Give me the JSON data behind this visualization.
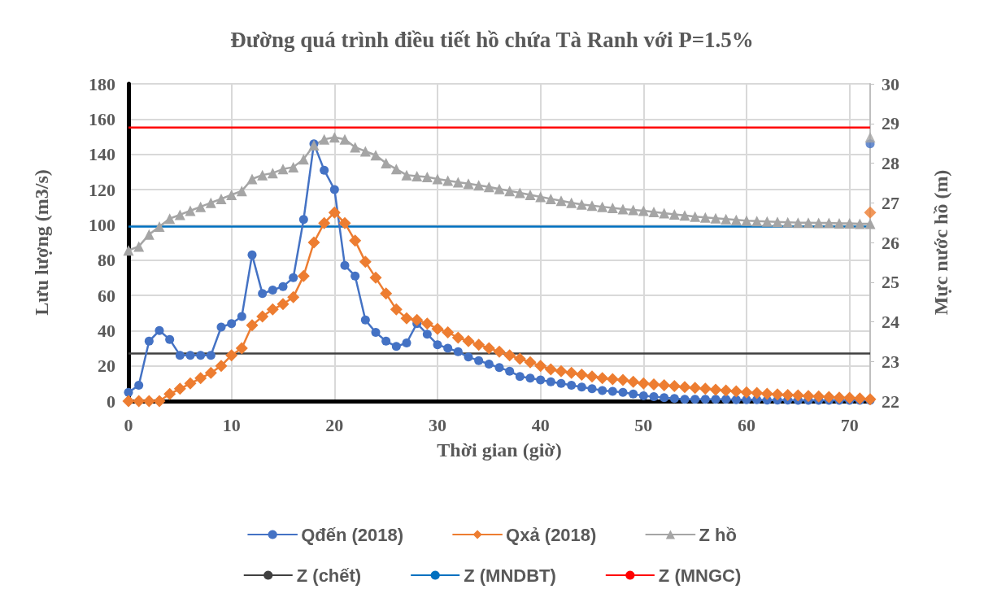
{
  "chart_data": {
    "type": "line",
    "title": "Đường quá trình điều tiết hồ chứa Tà Ranh với P=1.5%",
    "xlabel": "Thời gian (giờ)",
    "ylabel": "Lưu lượng (m3/s)",
    "y2label": "Mực nước hồ (m)",
    "x": [
      0,
      1,
      2,
      3,
      4,
      5,
      6,
      7,
      8,
      9,
      10,
      11,
      12,
      13,
      14,
      15,
      16,
      17,
      18,
      19,
      20,
      21,
      22,
      23,
      24,
      25,
      26,
      27,
      28,
      29,
      30,
      31,
      32,
      33,
      34,
      35,
      36,
      37,
      38,
      39,
      40,
      41,
      42,
      43,
      44,
      45,
      46,
      47,
      48,
      49,
      50,
      51,
      52,
      53,
      54,
      55,
      56,
      57,
      58,
      59,
      60,
      61,
      62,
      63,
      64,
      65,
      66,
      67,
      68,
      69,
      70,
      71,
      72
    ],
    "series": [
      {
        "name": "Qđến (2018)",
        "color": "#4472c4",
        "marker": "circle",
        "values": [
          5,
          9,
          34,
          40,
          35,
          26,
          26,
          26,
          26,
          42,
          44,
          48,
          83,
          61,
          63,
          65,
          70,
          103,
          146,
          131,
          120,
          77,
          71,
          46,
          39,
          34,
          31,
          33,
          44,
          38,
          32,
          30,
          28,
          25,
          23,
          21,
          19,
          17,
          14,
          13,
          12,
          11,
          10,
          9,
          8,
          7,
          6,
          5.5,
          5,
          4,
          3,
          2.5,
          2,
          1.5,
          1,
          1,
          1,
          1,
          1,
          0.8,
          0.8,
          0.8,
          0.6,
          0.6,
          0.6,
          0.5,
          0.5,
          0.5,
          0.5,
          0.5,
          0.5,
          0.5,
          0.5
        ]
      },
      {
        "name": "Qxả (2018)",
        "color": "#ed7d31",
        "marker": "diamond",
        "values": [
          0,
          0,
          0,
          0,
          4,
          7,
          10,
          13,
          16,
          20,
          26,
          30,
          43,
          48,
          52,
          55,
          59,
          71,
          90,
          101,
          107,
          101,
          91,
          79,
          70,
          61,
          52,
          47,
          46,
          44,
          41,
          39,
          36,
          34,
          32,
          30,
          28,
          26,
          24,
          22,
          20,
          18,
          17,
          16,
          15,
          14,
          13,
          12.5,
          12,
          11,
          10,
          9.5,
          9,
          8.5,
          8,
          7.5,
          7,
          6.5,
          6,
          5.5,
          5,
          4.6,
          4.2,
          3.8,
          3.5,
          3.2,
          2.9,
          2.6,
          2.3,
          2,
          1.8,
          1.5,
          1
        ]
      },
      {
        "name": "Z hồ",
        "color": "#a5a5a5",
        "marker": "triangle",
        "axis": "y2",
        "values": [
          25.8,
          25.9,
          26.2,
          26.4,
          26.6,
          26.7,
          26.8,
          26.9,
          27.0,
          27.1,
          27.2,
          27.3,
          27.6,
          27.7,
          27.75,
          27.85,
          27.9,
          28.1,
          28.45,
          28.6,
          28.65,
          28.6,
          28.4,
          28.3,
          28.2,
          28.0,
          27.85,
          27.7,
          27.67,
          27.65,
          27.6,
          27.56,
          27.52,
          27.48,
          27.44,
          27.4,
          27.35,
          27.3,
          27.25,
          27.2,
          27.15,
          27.1,
          27.05,
          27.0,
          26.96,
          26.93,
          26.9,
          26.87,
          26.84,
          26.82,
          26.8,
          26.77,
          26.74,
          26.71,
          26.68,
          26.65,
          26.63,
          26.61,
          26.59,
          26.57,
          26.55,
          26.54,
          26.53,
          26.52,
          26.51,
          26.5,
          26.5,
          26.49,
          26.49,
          26.48,
          26.48,
          26.47,
          26.47
        ]
      },
      {
        "type": "scatter",
        "color": "#4472c4",
        "marker": "circle",
        "values": [
          null,
          null,
          null,
          null,
          null,
          null,
          null,
          null,
          null,
          null,
          null,
          null,
          null,
          null,
          null,
          null,
          null,
          null,
          null,
          null,
          null,
          null,
          null,
          null,
          null,
          null,
          null,
          null,
          null,
          null,
          null,
          null,
          null,
          null,
          null,
          null,
          null,
          null,
          null,
          null,
          null,
          null,
          null,
          null,
          null,
          null,
          null,
          null,
          null,
          null,
          null,
          null,
          null,
          null,
          null,
          null,
          null,
          null,
          null,
          null,
          null,
          null,
          null,
          null,
          null,
          null,
          null,
          null,
          null,
          null,
          null,
          null,
          146
        ]
      },
      {
        "type": "scatter",
        "color": "#ed7d31",
        "marker": "diamond",
        "values": [
          null,
          null,
          null,
          null,
          null,
          null,
          null,
          null,
          null,
          null,
          null,
          null,
          null,
          null,
          null,
          null,
          null,
          null,
          null,
          null,
          null,
          null,
          null,
          null,
          null,
          null,
          null,
          null,
          null,
          null,
          null,
          null,
          null,
          null,
          null,
          null,
          null,
          null,
          null,
          null,
          null,
          null,
          null,
          null,
          null,
          null,
          null,
          null,
          null,
          null,
          null,
          null,
          null,
          null,
          null,
          null,
          null,
          null,
          null,
          null,
          null,
          null,
          null,
          null,
          null,
          null,
          null,
          null,
          null,
          null,
          null,
          null,
          107
        ]
      },
      {
        "type": "scatter",
        "color": "#a5a5a5",
        "marker": "triangle",
        "axis": "y2",
        "values": [
          null,
          null,
          null,
          null,
          null,
          null,
          null,
          null,
          null,
          null,
          null,
          null,
          null,
          null,
          null,
          null,
          null,
          null,
          null,
          null,
          null,
          null,
          null,
          null,
          null,
          null,
          null,
          null,
          null,
          null,
          null,
          null,
          null,
          null,
          null,
          null,
          null,
          null,
          null,
          null,
          null,
          null,
          null,
          null,
          null,
          null,
          null,
          null,
          null,
          null,
          null,
          null,
          null,
          null,
          null,
          null,
          null,
          null,
          null,
          null,
          null,
          null,
          null,
          null,
          null,
          null,
          null,
          null,
          null,
          null,
          null,
          null,
          28.65
        ]
      }
    ],
    "ref_lines": [
      {
        "axis": "y2",
        "value": 23.2,
        "label": "Z (chết)",
        "color": "#404040"
      },
      {
        "axis": "y2",
        "value": 26.4,
        "label": "Z (MNDBT)",
        "color": "#0070c0"
      },
      {
        "axis": "y2",
        "value": 28.9,
        "label": "Z (MNGC)",
        "color": "#ff0000"
      }
    ],
    "xlim": [
      0,
      72
    ],
    "xticks": [
      0,
      10,
      20,
      30,
      40,
      50,
      60,
      70
    ],
    "ylim": [
      0,
      180
    ],
    "yticks": [
      0,
      20,
      40,
      60,
      80,
      100,
      120,
      140,
      160,
      180
    ],
    "y2lim": [
      22,
      30
    ],
    "y2ticks": [
      22,
      23,
      24,
      25,
      26,
      27,
      28,
      29,
      30
    ],
    "grid": true,
    "legend": "bottom"
  }
}
